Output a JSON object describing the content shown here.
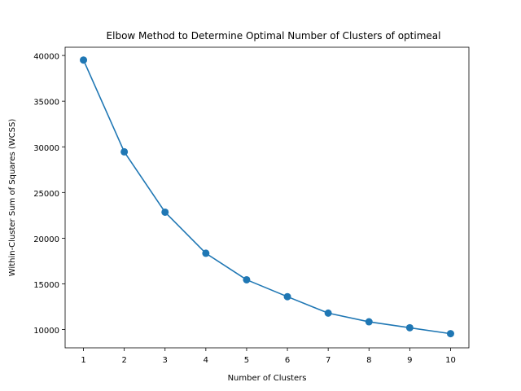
{
  "chart_data": {
    "type": "line",
    "title": "Elbow Method to Determine Optimal Number of Clusters of optimeal",
    "xlabel": "Number of Clusters",
    "ylabel": "Within-Cluster Sum of Squares (WCSS)",
    "x": [
      1,
      2,
      3,
      4,
      5,
      6,
      7,
      8,
      9,
      10
    ],
    "series": [
      {
        "values": [
          39500,
          29450,
          22850,
          18350,
          15450,
          13600,
          11800,
          10850,
          10200,
          9550
        ],
        "color": "#1f77b4",
        "marker": "circle"
      }
    ],
    "xticks": [
      1,
      2,
      3,
      4,
      5,
      6,
      7,
      8,
      9,
      10
    ],
    "yticks": [
      10000,
      15000,
      20000,
      25000,
      30000,
      35000,
      40000
    ],
    "xlim": [
      0.55,
      10.45
    ],
    "ylim": [
      8000,
      40900
    ],
    "grid": false
  }
}
